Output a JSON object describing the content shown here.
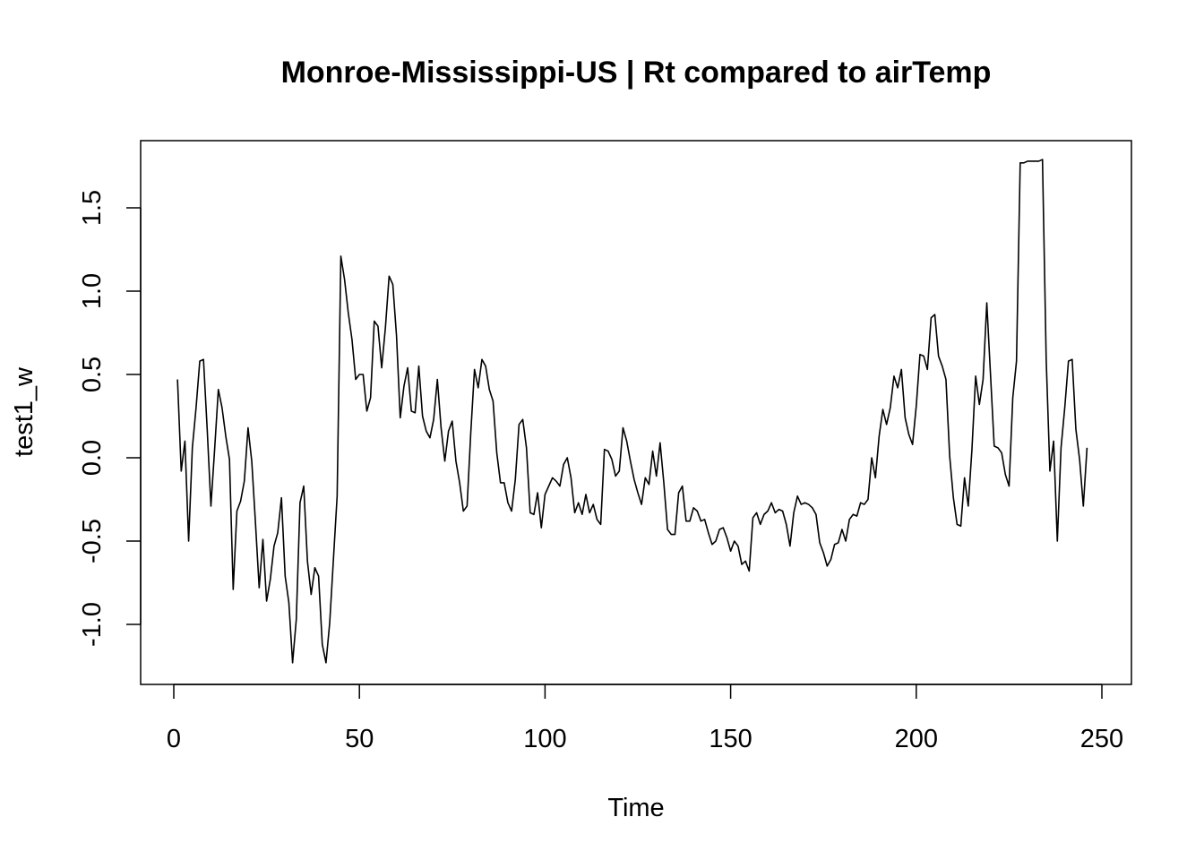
{
  "chart_data": {
    "type": "line",
    "title": "Monroe-Mississippi-US | Rt compared to airTemp",
    "xlabel": "Time",
    "ylabel": "test1_w",
    "xlim": [
      1,
      248
    ],
    "ylim": [
      -1.25,
      1.79
    ],
    "x_ticks": [
      0,
      50,
      100,
      150,
      200,
      250
    ],
    "y_ticks": [
      -1.0,
      -0.5,
      0.0,
      0.5,
      1.0,
      1.5
    ],
    "x_tick_labels": [
      "0",
      "50",
      "100",
      "150",
      "200",
      "250"
    ],
    "y_tick_labels": [
      "-1.0",
      "-0.5",
      "0.0",
      "0.5",
      "1.0",
      "1.5"
    ],
    "grid": false,
    "legend": "none",
    "line_color": "#000000",
    "series": [
      {
        "x_start": 1,
        "values": [
          0.47,
          -0.08,
          0.1,
          -0.5,
          0.06,
          0.3,
          0.58,
          0.59,
          0.17,
          -0.29,
          0.05,
          0.41,
          0.3,
          0.13,
          -0.01,
          -0.79,
          -0.32,
          -0.26,
          -0.14,
          0.18,
          -0.02,
          -0.39,
          -0.78,
          -0.49,
          -0.86,
          -0.73,
          -0.53,
          -0.45,
          -0.24,
          -0.71,
          -0.87,
          -1.23,
          -0.97,
          -0.27,
          -0.17,
          -0.62,
          -0.82,
          -0.66,
          -0.71,
          -1.12,
          -1.23,
          -0.99,
          -0.61,
          -0.23,
          1.21,
          1.07,
          0.87,
          0.71,
          0.47,
          0.5,
          0.5,
          0.28,
          0.36,
          0.82,
          0.79,
          0.54,
          0.78,
          1.09,
          1.04,
          0.73,
          0.24,
          0.43,
          0.54,
          0.28,
          0.27,
          0.55,
          0.25,
          0.16,
          0.12,
          0.23,
          0.47,
          0.18,
          -0.02,
          0.16,
          0.22,
          -0.02,
          -0.15,
          -0.32,
          -0.29,
          0.15,
          0.53,
          0.42,
          0.59,
          0.55,
          0.41,
          0.34,
          0.03,
          -0.15,
          -0.15,
          -0.27,
          -0.32,
          -0.13,
          0.2,
          0.23,
          0.06,
          -0.33,
          -0.34,
          -0.21,
          -0.42,
          -0.22,
          -0.17,
          -0.12,
          -0.14,
          -0.17,
          -0.04,
          0.0,
          -0.12,
          -0.33,
          -0.27,
          -0.34,
          -0.22,
          -0.33,
          -0.28,
          -0.37,
          -0.4,
          0.05,
          0.04,
          -0.01,
          -0.11,
          -0.08,
          0.18,
          0.1,
          -0.02,
          -0.13,
          -0.21,
          -0.28,
          -0.12,
          -0.16,
          0.04,
          -0.11,
          0.09,
          -0.15,
          -0.43,
          -0.46,
          -0.46,
          -0.21,
          -0.17,
          -0.38,
          -0.38,
          -0.3,
          -0.32,
          -0.38,
          -0.37,
          -0.45,
          -0.52,
          -0.5,
          -0.43,
          -0.42,
          -0.48,
          -0.56,
          -0.5,
          -0.53,
          -0.64,
          -0.62,
          -0.68,
          -0.36,
          -0.33,
          -0.4,
          -0.34,
          -0.32,
          -0.27,
          -0.33,
          -0.31,
          -0.32,
          -0.4,
          -0.53,
          -0.33,
          -0.23,
          -0.28,
          -0.27,
          -0.28,
          -0.3,
          -0.34,
          -0.51,
          -0.57,
          -0.65,
          -0.61,
          -0.52,
          -0.51,
          -0.43,
          -0.5,
          -0.37,
          -0.34,
          -0.35,
          -0.27,
          -0.28,
          -0.25,
          0.0,
          -0.12,
          0.13,
          0.29,
          0.2,
          0.3,
          0.49,
          0.42,
          0.53,
          0.24,
          0.14,
          0.08,
          0.31,
          0.62,
          0.61,
          0.53,
          0.84,
          0.86,
          0.61,
          0.55,
          0.47,
          0.01,
          -0.24,
          -0.4,
          -0.41,
          -0.12,
          -0.29,
          0.05,
          0.49,
          0.32,
          0.47,
          0.93,
          0.5,
          0.07,
          0.06,
          0.03,
          -0.1,
          -0.17,
          0.36,
          0.58,
          1.77,
          1.77,
          1.78,
          1.78,
          1.78,
          1.78,
          1.79,
          0.59,
          -0.08,
          0.1,
          -0.5,
          0.06,
          0.3,
          0.58,
          0.59,
          0.17,
          -0.01,
          -0.29,
          0.06
        ]
      }
    ]
  }
}
